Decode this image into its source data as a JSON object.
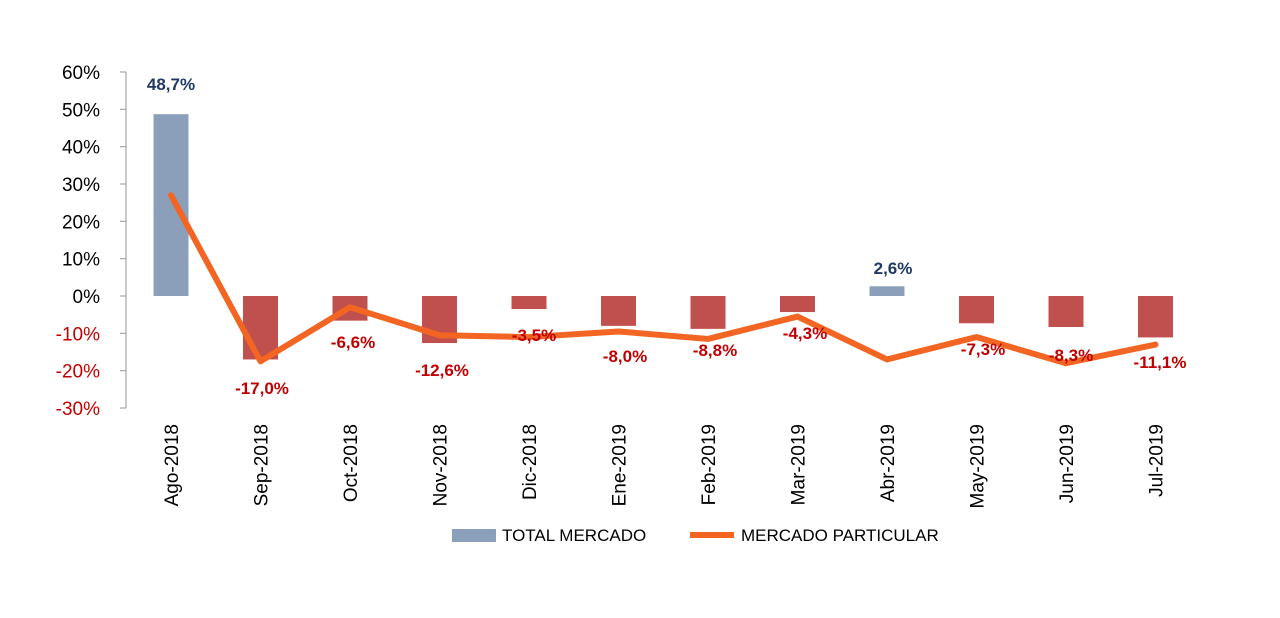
{
  "chart_data": {
    "type": "bar",
    "categories": [
      "Ago-2018",
      "Sep-2018",
      "Oct-2018",
      "Nov-2018",
      "Dic-2018",
      "Ene-2019",
      "Feb-2019",
      "Mar-2019",
      "Abr-2019",
      "May-2019",
      "Jun-2019",
      "Jul-2019"
    ],
    "series": [
      {
        "name": "TOTAL MERCADO",
        "type": "bar",
        "values": [
          48.7,
          -17.0,
          -6.6,
          -12.6,
          -3.5,
          -8.0,
          -8.8,
          -4.3,
          2.6,
          -7.3,
          -8.3,
          -11.1
        ],
        "labels": [
          "48,7%",
          "-17,0%",
          "-6,6%",
          "-12,6%",
          "-3,5%",
          "-8,0%",
          "-8,8%",
          "-4,3%",
          "2,6%",
          "-7,3%",
          "-8,3%",
          "-11,1%"
        ],
        "color_positive": "#8b9fbb",
        "color_negative": "#c0504d"
      },
      {
        "name": "MERCADO PARTICULAR",
        "type": "line",
        "values": [
          27,
          -17.5,
          -3,
          -10.5,
          -11,
          -9.5,
          -11.5,
          -5.5,
          -17,
          -11,
          -18,
          -13
        ],
        "color": "#f26522"
      }
    ],
    "ylim": [
      -30,
      60
    ],
    "yticks": [
      60,
      50,
      40,
      30,
      20,
      10,
      0,
      -10,
      -20,
      -30
    ],
    "ytick_labels": [
      "60%",
      "50%",
      "40%",
      "30%",
      "20%",
      "10%",
      "0%",
      "-10%",
      "-20%",
      "-30%"
    ],
    "label_colors": {
      "positive": "#1f3864",
      "negative": "#c00000"
    },
    "grid": false,
    "legend_position": "bottom"
  }
}
